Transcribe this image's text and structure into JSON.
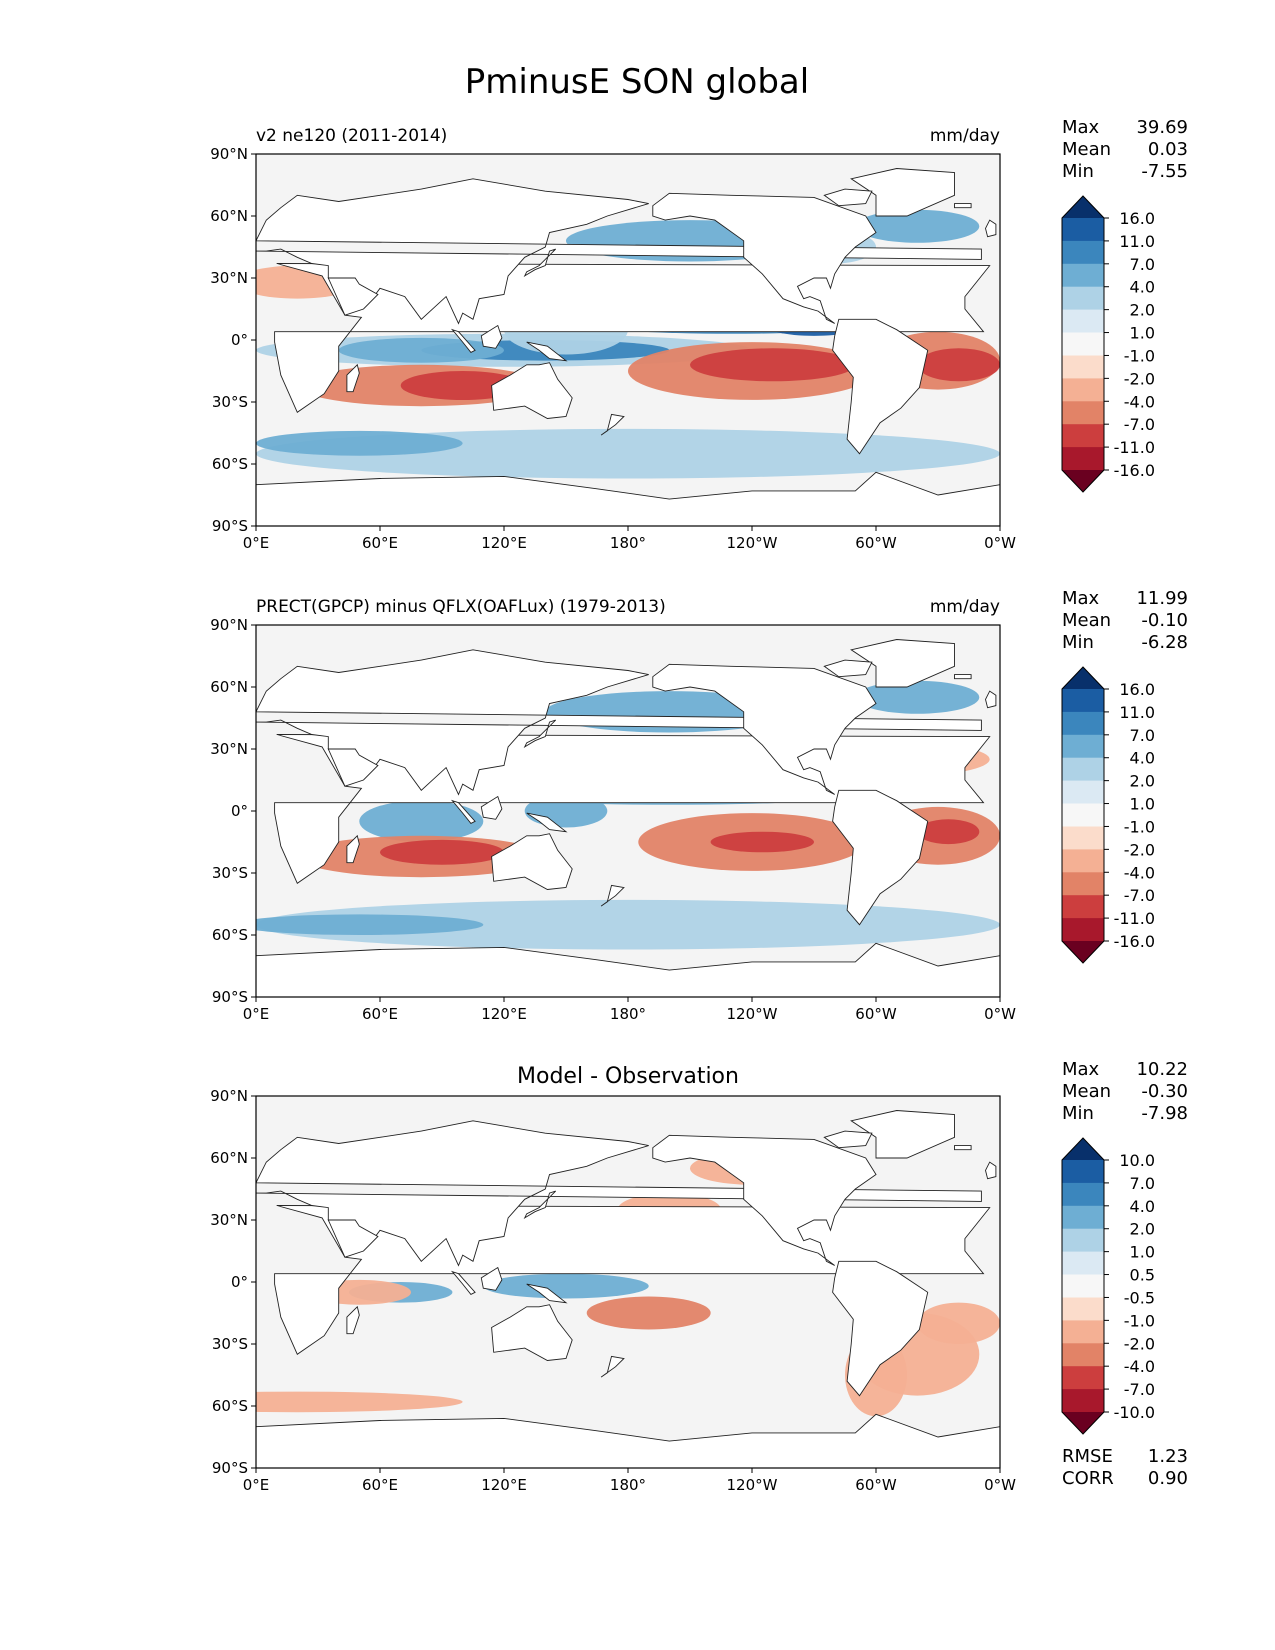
{
  "figure_title": "PminusE SON global",
  "colors": {
    "scale_main": [
      "#6a0020",
      "#a8182c",
      "#cc3e3e",
      "#e28367",
      "#f4b094",
      "#fbdccb",
      "#f7f7f7",
      "#dbe9f3",
      "#aed2e6",
      "#6eaed3",
      "#3b86bd",
      "#1b5da3",
      "#08306b"
    ],
    "land": "#ffffff",
    "ocean_background": "#f4f4f4"
  },
  "chart_data": [
    {
      "type": "heatmap",
      "title": "v2 ne120 (2011-2014)",
      "units": "mm/day",
      "stats": {
        "max_label": "Max",
        "max": "39.69",
        "mean_label": "Mean",
        "mean": "0.03",
        "min_label": "Min",
        "min": "-7.55"
      },
      "colorbar_levels": [
        "16.0",
        "11.0",
        "7.0",
        "4.0",
        "2.0",
        "1.0",
        "-1.0",
        "-2.0",
        "-4.0",
        "-7.0",
        "-11.0",
        "-16.0"
      ],
      "x_ticks": [
        "0°E",
        "60°E",
        "120°E",
        "180°",
        "120°W",
        "60°W",
        "0°W"
      ],
      "y_ticks": [
        "90°N",
        "60°N",
        "30°N",
        "0°",
        "30°S",
        "60°S",
        "90°S"
      ],
      "xlim": [
        0,
        360
      ],
      "ylim": [
        -90,
        90
      ]
    },
    {
      "type": "heatmap",
      "title": "PRECT(GPCP) minus QFLX(OAFLux) (1979-2013)",
      "units": "mm/day",
      "stats": {
        "max_label": "Max",
        "max": "11.99",
        "mean_label": "Mean",
        "mean": "-0.10",
        "min_label": "Min",
        "min": "-6.28"
      },
      "colorbar_levels": [
        "16.0",
        "11.0",
        "7.0",
        "4.0",
        "2.0",
        "1.0",
        "-1.0",
        "-2.0",
        "-4.0",
        "-7.0",
        "-11.0",
        "-16.0"
      ],
      "x_ticks": [
        "0°E",
        "60°E",
        "120°E",
        "180°",
        "120°W",
        "60°W",
        "0°W"
      ],
      "y_ticks": [
        "90°N",
        "60°N",
        "30°N",
        "0°",
        "30°S",
        "60°S",
        "90°S"
      ],
      "xlim": [
        0,
        360
      ],
      "ylim": [
        -90,
        90
      ]
    },
    {
      "type": "heatmap",
      "title": "Model - Observation",
      "units": "",
      "stats": {
        "max_label": "Max",
        "max": "10.22",
        "mean_label": "Mean",
        "mean": "-0.30",
        "min_label": "Min",
        "min": "-7.98"
      },
      "colorbar_levels": [
        "10.0",
        "7.0",
        "4.0",
        "2.0",
        "1.0",
        "0.5",
        "-0.5",
        "-1.0",
        "-2.0",
        "-4.0",
        "-7.0",
        "-10.0"
      ],
      "x_ticks": [
        "0°E",
        "60°E",
        "120°E",
        "180°",
        "120°W",
        "60°W",
        "0°W"
      ],
      "y_ticks": [
        "90°N",
        "60°N",
        "30°N",
        "0°",
        "30°S",
        "60°S",
        "90°S"
      ],
      "xlim": [
        0,
        360
      ],
      "ylim": [
        -90,
        90
      ],
      "rmse_label": "RMSE",
      "rmse": "1.23",
      "corr_label": "CORR",
      "corr": "0.90"
    }
  ]
}
